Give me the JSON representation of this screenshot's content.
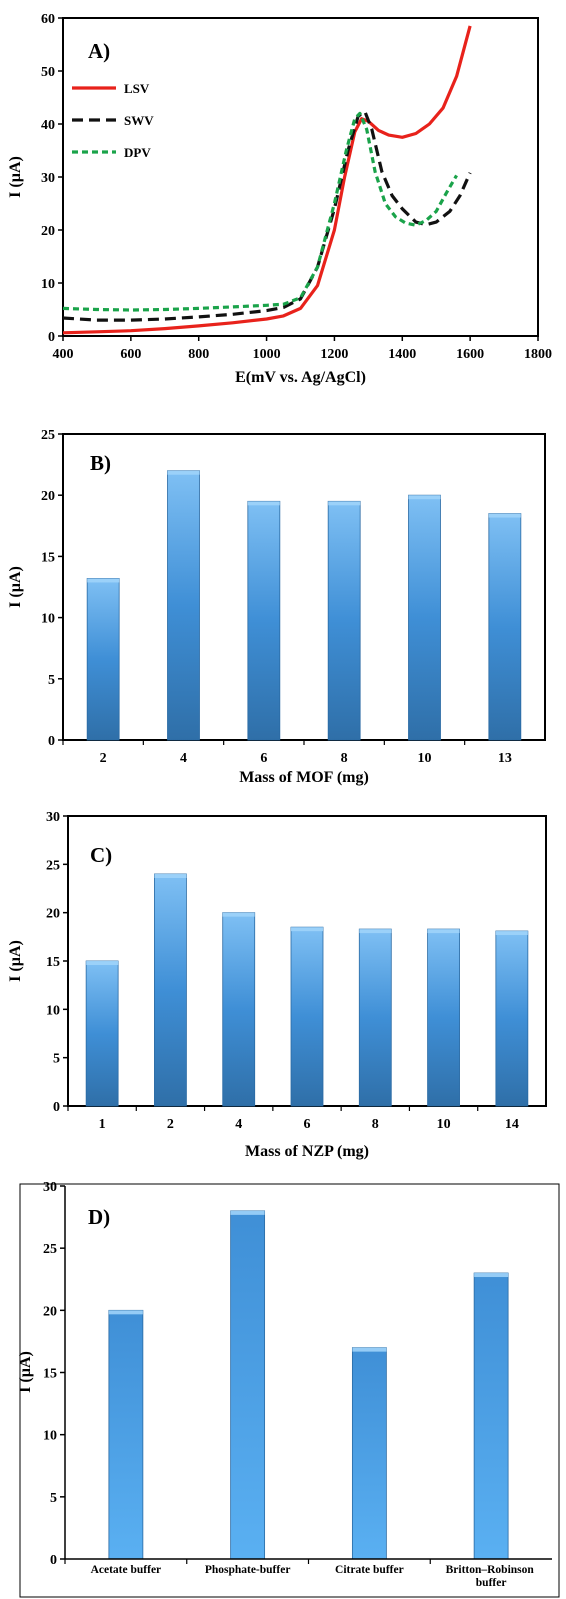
{
  "chart_data": [
    {
      "type": "line",
      "panel_label": "A)",
      "xlabel": "E(mV vs. Ag/AgCl)",
      "ylabel": "I (µA)",
      "xlim": [
        400,
        1800
      ],
      "ylim": [
        0,
        60
      ],
      "xticks": [
        400,
        600,
        800,
        1000,
        1200,
        1400,
        1600,
        1800
      ],
      "yticks": [
        0,
        10,
        20,
        30,
        40,
        50,
        60
      ],
      "legend_position": "top-left",
      "series": [
        {
          "name": "LSV",
          "color": "#e8221b",
          "style": "solid",
          "points": [
            [
              400,
              0.6
            ],
            [
              500,
              0.8
            ],
            [
              600,
              1.0
            ],
            [
              700,
              1.4
            ],
            [
              800,
              1.9
            ],
            [
              900,
              2.5
            ],
            [
              1000,
              3.2
            ],
            [
              1050,
              3.8
            ],
            [
              1100,
              5.2
            ],
            [
              1150,
              9.5
            ],
            [
              1200,
              20
            ],
            [
              1230,
              30
            ],
            [
              1260,
              38.5
            ],
            [
              1280,
              41
            ],
            [
              1300,
              40.5
            ],
            [
              1330,
              38.8
            ],
            [
              1360,
              37.9
            ],
            [
              1400,
              37.5
            ],
            [
              1440,
              38.2
            ],
            [
              1480,
              40
            ],
            [
              1520,
              43
            ],
            [
              1560,
              49
            ],
            [
              1600,
              58.5
            ]
          ]
        },
        {
          "name": "SWV",
          "color": "#111111",
          "style": "dashed",
          "points": [
            [
              400,
              3.4
            ],
            [
              500,
              3.0
            ],
            [
              600,
              3.0
            ],
            [
              700,
              3.2
            ],
            [
              800,
              3.6
            ],
            [
              900,
              4.1
            ],
            [
              1000,
              4.8
            ],
            [
              1050,
              5.4
            ],
            [
              1100,
              7.0
            ],
            [
              1150,
              13
            ],
            [
              1200,
              24
            ],
            [
              1240,
              35
            ],
            [
              1270,
              41.5
            ],
            [
              1290,
              42.3
            ],
            [
              1310,
              39
            ],
            [
              1340,
              31
            ],
            [
              1370,
              26.5
            ],
            [
              1400,
              24
            ],
            [
              1440,
              21.5
            ],
            [
              1470,
              21.0
            ],
            [
              1500,
              21.5
            ],
            [
              1540,
              23.5
            ],
            [
              1570,
              26.5
            ],
            [
              1600,
              30.8
            ]
          ]
        },
        {
          "name": "DPV",
          "color": "#1aa34a",
          "style": "dotted",
          "points": [
            [
              400,
              5.2
            ],
            [
              500,
              5.0
            ],
            [
              600,
              4.9
            ],
            [
              700,
              5.0
            ],
            [
              800,
              5.2
            ],
            [
              900,
              5.5
            ],
            [
              1000,
              5.8
            ],
            [
              1050,
              6.0
            ],
            [
              1100,
              7.2
            ],
            [
              1150,
              13
            ],
            [
              1200,
              25
            ],
            [
              1235,
              35
            ],
            [
              1260,
              41
            ],
            [
              1275,
              42
            ],
            [
              1295,
              39
            ],
            [
              1320,
              31
            ],
            [
              1350,
              25
            ],
            [
              1380,
              22.5
            ],
            [
              1410,
              21.3
            ],
            [
              1440,
              20.9
            ],
            [
              1470,
              21.8
            ],
            [
              1500,
              23.5
            ],
            [
              1530,
              27
            ],
            [
              1560,
              30.3
            ]
          ]
        }
      ]
    },
    {
      "type": "bar",
      "panel_label": "B)",
      "xlabel": "Mass of MOF (mg)",
      "ylabel": "I (µA)",
      "ylim": [
        0,
        25
      ],
      "yticks": [
        0,
        5,
        10,
        15,
        20,
        25
      ],
      "categories": [
        "2",
        "4",
        "6",
        "8",
        "10",
        "13"
      ],
      "values": [
        13.2,
        22,
        19.5,
        19.5,
        20,
        18.5
      ]
    },
    {
      "type": "bar",
      "panel_label": "C)",
      "xlabel": "Mass of NZP (mg)",
      "ylabel": "I (µA)",
      "ylim": [
        0,
        30
      ],
      "yticks": [
        0,
        5,
        10,
        15,
        20,
        25,
        30
      ],
      "categories": [
        "1",
        "2",
        "4",
        "6",
        "8",
        "10",
        "14"
      ],
      "values": [
        15,
        24,
        20,
        18.5,
        18.3,
        18.3,
        18.1
      ]
    },
    {
      "type": "bar",
      "panel_label": "D)",
      "xlabel": "",
      "ylabel": "I (µA)",
      "ylim": [
        0,
        30
      ],
      "yticks": [
        0,
        5,
        10,
        15,
        20,
        25,
        30
      ],
      "categories": [
        "Acetate buffer",
        "Phosphate-buffer",
        "Citrate buffer",
        "Britton–Robinson buffer"
      ],
      "values": [
        20,
        28,
        17,
        23
      ]
    }
  ],
  "styles": {
    "bar_top": "#7fc0f4",
    "bar_mid": "#3f8fd6",
    "bar_bottom": "#2f6fa8",
    "axis_color": "#000000"
  }
}
